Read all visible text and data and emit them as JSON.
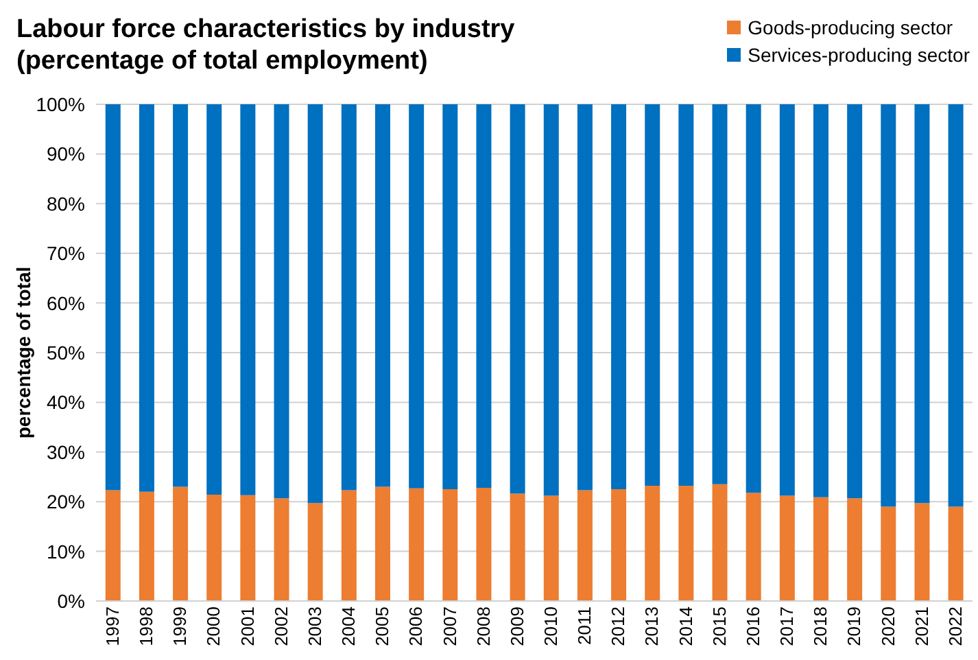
{
  "chart_data": {
    "type": "bar",
    "title": "Labour force characteristics by industry (percentage of total employment)",
    "ylabel": "percentage of total",
    "categories": [
      "1997",
      "1998",
      "1999",
      "2000",
      "2001",
      "2002",
      "2003",
      "2004",
      "2005",
      "2006",
      "2007",
      "2008",
      "2009",
      "2010",
      "2011",
      "2012",
      "2013",
      "2014",
      "2015",
      "2016",
      "2017",
      "2018",
      "2019",
      "2020",
      "2021",
      "2022"
    ],
    "series": [
      {
        "name": "Goods-producing sector",
        "color": "#ed7d31",
        "values": [
          22.3,
          22.0,
          23.0,
          21.4,
          21.3,
          20.7,
          19.7,
          22.3,
          23.0,
          22.7,
          22.5,
          22.8,
          21.6,
          21.2,
          22.3,
          22.5,
          23.2,
          23.2,
          23.5,
          21.8,
          21.2,
          20.9,
          20.7,
          19.0,
          19.7,
          19.0
        ]
      },
      {
        "name": "Services-producing sector",
        "color": "#0070c0",
        "values": [
          77.7,
          78.0,
          77.0,
          78.6,
          78.7,
          79.3,
          80.3,
          77.7,
          77.0,
          77.3,
          77.5,
          77.2,
          78.4,
          78.8,
          77.7,
          77.5,
          76.8,
          76.8,
          76.5,
          78.2,
          78.8,
          79.1,
          79.3,
          81.0,
          80.3,
          81.0
        ]
      }
    ],
    "stacked": true,
    "ylim": [
      0,
      100
    ],
    "yticks": [
      {
        "value": 0,
        "label": "0%"
      },
      {
        "value": 10,
        "label": "10%"
      },
      {
        "value": 20,
        "label": "20%"
      },
      {
        "value": 30,
        "label": "30%"
      },
      {
        "value": 40,
        "label": "40%"
      },
      {
        "value": 50,
        "label": "50%"
      },
      {
        "value": 60,
        "label": "60%"
      },
      {
        "value": 70,
        "label": "70%"
      },
      {
        "value": 80,
        "label": "80%"
      },
      {
        "value": 90,
        "label": "90%"
      },
      {
        "value": 100,
        "label": "100%"
      }
    ],
    "grid": "y",
    "legend": "top right"
  }
}
